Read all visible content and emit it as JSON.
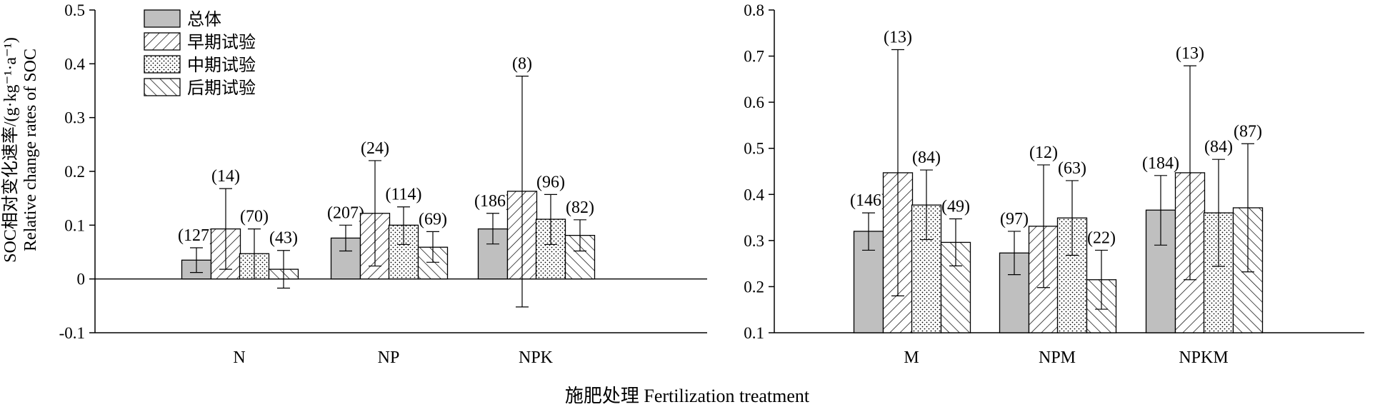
{
  "chart_data": [
    {
      "type": "bar",
      "panel": "left",
      "categories": [
        "N",
        "NP",
        "NPK"
      ],
      "ylim": [
        -0.1,
        0.5
      ],
      "yticks": [
        "0.5",
        "0.4",
        "0.3",
        "0.2",
        "0.1",
        "0",
        "-0.1"
      ],
      "ylabel": "SOC相对变化速率/(g·kg⁻¹·a⁻¹)",
      "ylabel_en": "Relative change rates of SOC",
      "legend_position": "top-left",
      "series": [
        {
          "name": "总体",
          "pattern": "solid-gray",
          "values": [
            0.035,
            0.076,
            0.093
          ],
          "err_low": [
            0.012,
            0.052,
            0.065
          ],
          "err_high": [
            0.058,
            0.1,
            0.122
          ],
          "n": [
            "(127)",
            "(207)",
            "(186)"
          ]
        },
        {
          "name": "早期试验",
          "pattern": "hatch-forward",
          "values": [
            0.093,
            0.122,
            0.163
          ],
          "err_low": [
            0.018,
            0.024,
            -0.052
          ],
          "err_high": [
            0.168,
            0.22,
            0.377
          ],
          "n": [
            "(14)",
            "(24)",
            "(8)"
          ]
        },
        {
          "name": "中期试验",
          "pattern": "dots",
          "values": [
            0.047,
            0.1,
            0.111
          ],
          "err_low": [
            0.0,
            0.064,
            0.064
          ],
          "err_high": [
            0.093,
            0.134,
            0.157
          ],
          "n": [
            "(70)",
            "(114)",
            "(96)"
          ]
        },
        {
          "name": "后期试验",
          "pattern": "hatch-back",
          "values": [
            0.018,
            0.059,
            0.081
          ],
          "err_low": [
            -0.017,
            0.031,
            0.052
          ],
          "err_high": [
            0.053,
            0.088,
            0.11
          ],
          "n": [
            "(43)",
            "(69)",
            "(82)"
          ]
        }
      ]
    },
    {
      "type": "bar",
      "panel": "right",
      "categories": [
        "M",
        "NPM",
        "NPKM"
      ],
      "ylim": [
        0.1,
        0.8
      ],
      "yticks": [
        "0.8",
        "0.7",
        "0.6",
        "0.5",
        "0.4",
        "0.3",
        "0.2",
        "0.1"
      ],
      "series": [
        {
          "name": "总体",
          "values": [
            0.32,
            0.273,
            0.366
          ],
          "err_low": [
            0.279,
            0.226,
            0.29
          ],
          "err_high": [
            0.36,
            0.32,
            0.441
          ],
          "n": [
            "(146)",
            "(97)",
            "(184)"
          ]
        },
        {
          "name": "早期试验",
          "values": [
            0.447,
            0.331,
            0.447
          ],
          "err_low": [
            0.18,
            0.198,
            0.215
          ],
          "err_high": [
            0.714,
            0.464,
            0.679
          ],
          "n": [
            "(13)",
            "(12)",
            "(13)"
          ]
        },
        {
          "name": "中期试验",
          "values": [
            0.377,
            0.349,
            0.36
          ],
          "err_low": [
            0.302,
            0.268,
            0.244
          ],
          "err_high": [
            0.453,
            0.43,
            0.476
          ],
          "n": [
            "(84)",
            "(63)",
            "(84)"
          ]
        },
        {
          "name": "后期试验",
          "values": [
            0.296,
            0.215,
            0.371
          ],
          "err_low": [
            0.245,
            0.151,
            0.232
          ],
          "err_high": [
            0.347,
            0.279,
            0.51
          ],
          "n": [
            "(49)",
            "(22)",
            "(87)"
          ]
        }
      ]
    }
  ],
  "xlabel": "施肥处理 Fertilization treatment"
}
